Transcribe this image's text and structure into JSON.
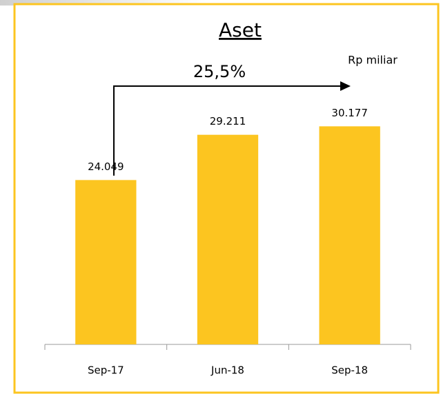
{
  "chart_data": {
    "type": "bar",
    "title": "Aset",
    "unit_label": "Rp miliar",
    "annotation": "25,5%",
    "categories": [
      "Sep-17",
      "Jun-18",
      "Sep-18"
    ],
    "values": [
      24049,
      29211,
      30177
    ],
    "value_labels": [
      "24.049",
      "29.211",
      "30.177"
    ],
    "color": "#fcc520",
    "ylim": [
      5300,
      35000
    ]
  }
}
